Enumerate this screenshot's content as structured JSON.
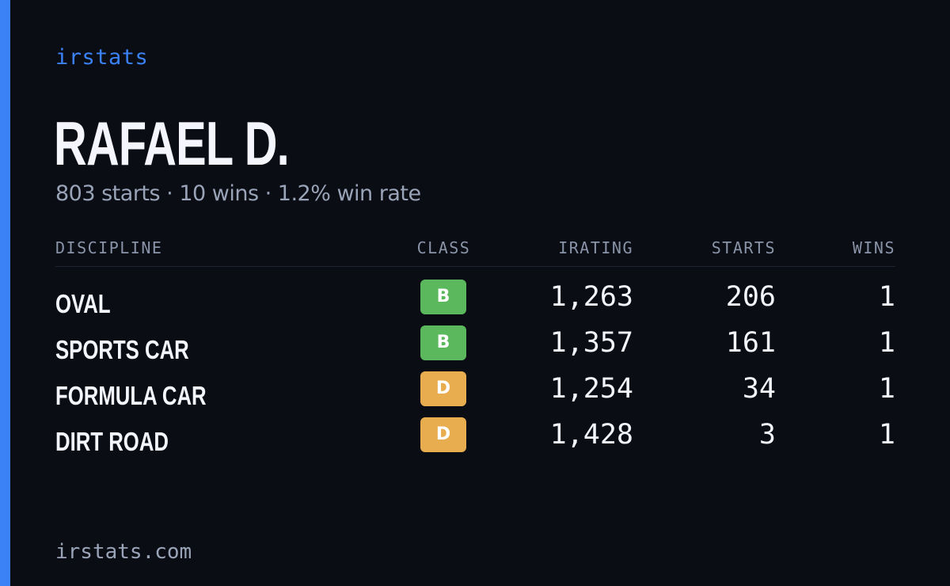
{
  "brand": "irstats",
  "driver": {
    "name": "RAFAEL D.",
    "summary": "803 starts · 10 wins · 1.2% win rate"
  },
  "table": {
    "headers": {
      "discipline": "DISCIPLINE",
      "class": "CLASS",
      "irating": "IRATING",
      "starts": "STARTS",
      "wins": "WINS"
    },
    "rows": [
      {
        "discipline": "OVAL",
        "class": "B",
        "class_color": "#5cb85c",
        "irating": "1,263",
        "starts": "206",
        "wins": "1"
      },
      {
        "discipline": "SPORTS CAR",
        "class": "B",
        "class_color": "#5cb85c",
        "irating": "1,357",
        "starts": "161",
        "wins": "1"
      },
      {
        "discipline": "FORMULA CAR",
        "class": "D",
        "class_color": "#e8ad4f",
        "irating": "1,254",
        "starts": "34",
        "wins": "1"
      },
      {
        "discipline": "DIRT ROAD",
        "class": "D",
        "class_color": "#e8ad4f",
        "irating": "1,428",
        "starts": "3",
        "wins": "1"
      }
    ]
  },
  "footer": "irstats.com",
  "colors": {
    "background": "#0a0d14",
    "accent": "#3b82f6",
    "class_b": "#5cb85c",
    "class_d": "#e8ad4f"
  }
}
